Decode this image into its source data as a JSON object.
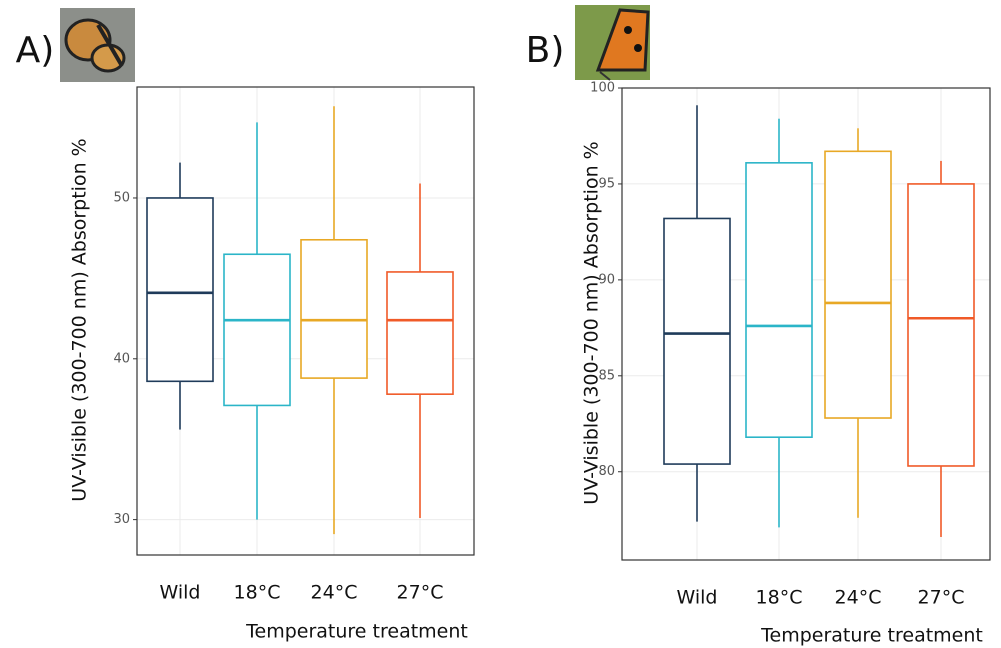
{
  "chart_data": [
    {
      "type": "box",
      "label": "A)",
      "y_label": "UV-Visible (300-700  nm) Absorption %",
      "x_label": "Temperature treatment",
      "categories": [
        "Wild",
        "18°C",
        "24°C",
        "27°C"
      ],
      "colors": [
        "#1f3b5a",
        "#2bb5c8",
        "#e8a825",
        "#f05a28"
      ],
      "min": [
        35.6,
        30.0,
        29.1,
        30.1
      ],
      "q1": [
        38.6,
        37.1,
        38.8,
        37.8
      ],
      "median": [
        44.1,
        42.4,
        42.4,
        42.4
      ],
      "q3": [
        50.0,
        46.5,
        47.4,
        45.4
      ],
      "max": [
        52.2,
        54.7,
        55.7,
        50.9
      ],
      "ylim": [
        27.8,
        56.9
      ],
      "yticks": [
        30,
        40,
        50
      ],
      "grid": true
    },
    {
      "type": "box",
      "label": "B)",
      "y_label": "UV-Visible (300-700  nm) Absorption %",
      "x_label": "Temperature treatment",
      "categories": [
        "Wild",
        "18°C",
        "24°C",
        "27°C"
      ],
      "colors": [
        "#1f3b5a",
        "#2bb5c8",
        "#e8a825",
        "#f05a28"
      ],
      "min": [
        77.4,
        77.1,
        77.6,
        76.6
      ],
      "q1": [
        80.4,
        81.8,
        82.8,
        80.3
      ],
      "median": [
        87.2,
        87.6,
        88.8,
        88.0
      ],
      "q3": [
        93.2,
        96.1,
        96.7,
        95.0
      ],
      "max": [
        99.1,
        98.4,
        97.9,
        96.2
      ],
      "ylim": [
        75.4,
        100
      ],
      "yticks": [
        80,
        85,
        90,
        95,
        100
      ],
      "grid": true
    }
  ]
}
